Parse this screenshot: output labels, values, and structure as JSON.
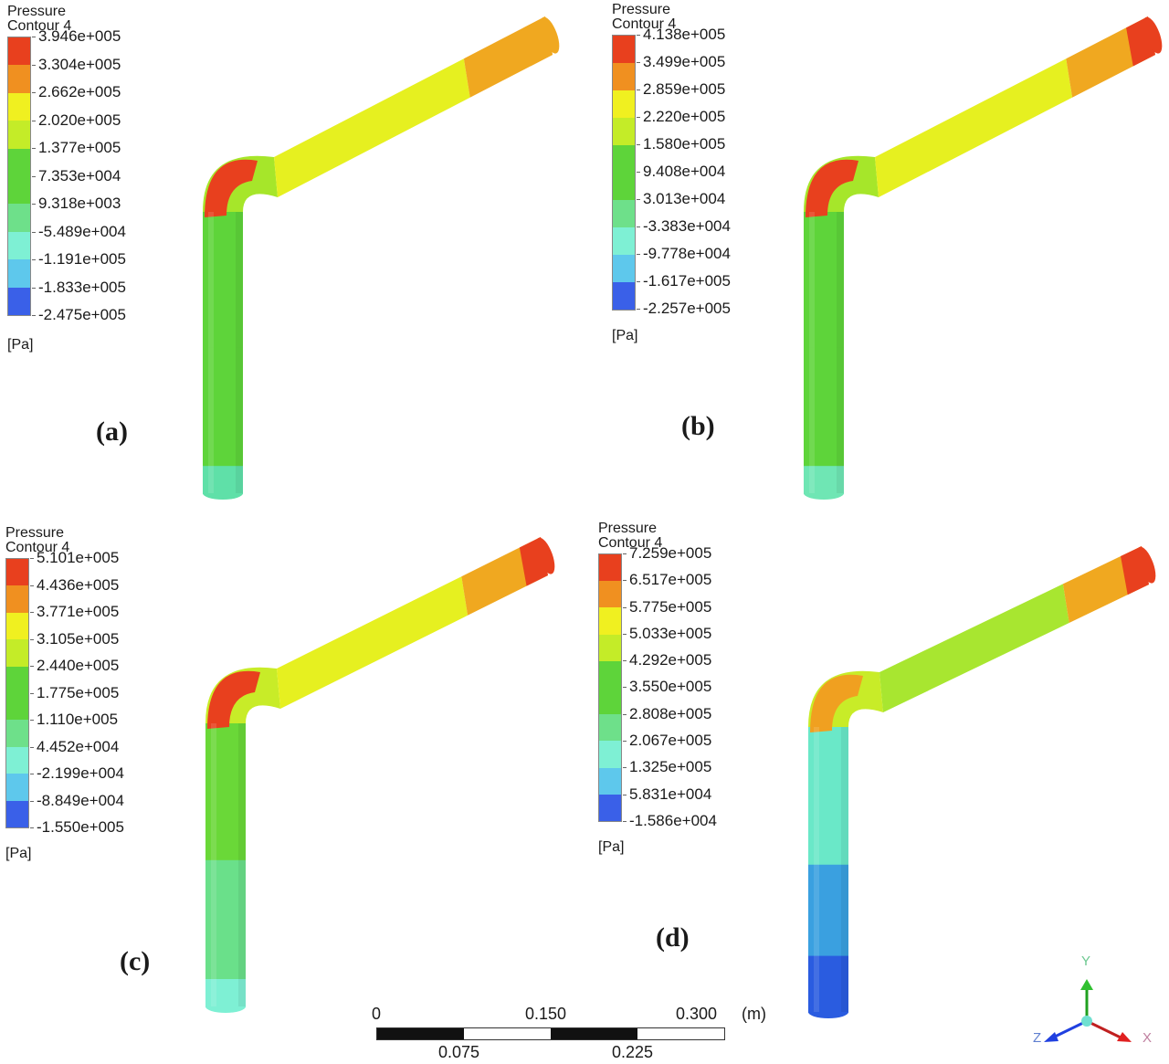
{
  "figure": {
    "type": "CFD pressure contour on 90-degree pipe bend, four cases",
    "panels": [
      {
        "id": "a",
        "label": "(a)",
        "legend": {
          "title_line1": "Pressure",
          "title_line2": "Contour 4",
          "unit": "[Pa]",
          "ticks": [
            "3.946e+005",
            "3.304e+005",
            "2.662e+005",
            "2.020e+005",
            "1.377e+005",
            "7.353e+004",
            "9.318e+003",
            "-5.489e+004",
            "-1.191e+005",
            "-1.833e+005",
            "-2.475e+005"
          ]
        },
        "pipe_bands": {
          "vertical_bottom": "#5fe0a8",
          "vertical_lower": "#5ed43a",
          "vertical_upper": "#5ed43a",
          "bend_outer": "#e8401e",
          "bend_inner": "#a6e62a",
          "horizontal_mid": "#e6f020",
          "horizontal_end": "#f0a820",
          "end_cap": "#f0a820"
        }
      },
      {
        "id": "b",
        "label": "(b)",
        "legend": {
          "title_line1": "Pressure",
          "title_line2": "Contour 4",
          "unit": "[Pa]",
          "ticks": [
            "4.138e+005",
            "3.499e+005",
            "2.859e+005",
            "2.220e+005",
            "1.580e+005",
            "9.408e+004",
            "3.013e+004",
            "-3.383e+004",
            "-9.778e+004",
            "-1.617e+005",
            "-2.257e+005"
          ]
        },
        "pipe_bands": {
          "vertical_bottom": "#6fe6b4",
          "vertical_lower": "#5ed43a",
          "vertical_upper": "#5ed43a",
          "bend_outer": "#e8401e",
          "bend_inner": "#a6e62a",
          "horizontal_mid": "#e6f020",
          "horizontal_end": "#f0a820",
          "end_cap": "#e8401e"
        }
      },
      {
        "id": "c",
        "label": "(c)",
        "legend": {
          "title_line1": "Pressure",
          "title_line2": "Contour 4",
          "unit": "[Pa]",
          "ticks": [
            "5.101e+005",
            "4.436e+005",
            "3.771e+005",
            "3.105e+005",
            "2.440e+005",
            "1.775e+005",
            "1.110e+005",
            "4.452e+004",
            "-2.199e+004",
            "-8.849e+004",
            "-1.550e+005"
          ]
        },
        "pipe_bands": {
          "vertical_bottom": "#7ef0d4",
          "vertical_lower": "#6ae08a",
          "vertical_upper": "#6ad838",
          "bend_outer": "#e8401e",
          "bend_inner": "#c8ec28",
          "horizontal_mid": "#e6f020",
          "horizontal_end": "#f0a820",
          "end_cap": "#e8401e"
        }
      },
      {
        "id": "d",
        "label": "(d)",
        "legend": {
          "title_line1": "Pressure",
          "title_line2": "Contour 4",
          "unit": "[Pa]",
          "ticks": [
            "7.259e+005",
            "6.517e+005",
            "5.775e+005",
            "5.033e+005",
            "4.292e+005",
            "3.550e+005",
            "2.808e+005",
            "2.067e+005",
            "1.325e+005",
            "5.831e+004",
            "-1.586e+004"
          ]
        },
        "pipe_bands": {
          "vertical_bottom": "#2a5ce0",
          "vertical_lower": "#3aa0e0",
          "vertical_upper": "#6ae8c8",
          "bend_outer": "#f0a020",
          "bend_inner": "#c8ec28",
          "horizontal_mid": "#a8e630",
          "horizontal_end": "#f0a820",
          "end_cap": "#e8401e"
        }
      }
    ],
    "colormap": [
      "#e8401e",
      "#f09020",
      "#f0f020",
      "#c4ec28",
      "#5ed43a",
      "#5ed43a",
      "#6ee08a",
      "#7ef0d4",
      "#5ec8ec",
      "#3a60e8"
    ],
    "scale_bar": {
      "top_labels": [
        "0",
        "0.150",
        "0.300"
      ],
      "unit": "(m)",
      "bottom_labels": [
        "0.075",
        "0.225"
      ]
    },
    "axis_triad": {
      "y_label": "Y",
      "x_label": "X",
      "z_label": "Z",
      "y_color": "#20a020",
      "x_color": "#d02020",
      "z_color": "#2040e0"
    }
  }
}
